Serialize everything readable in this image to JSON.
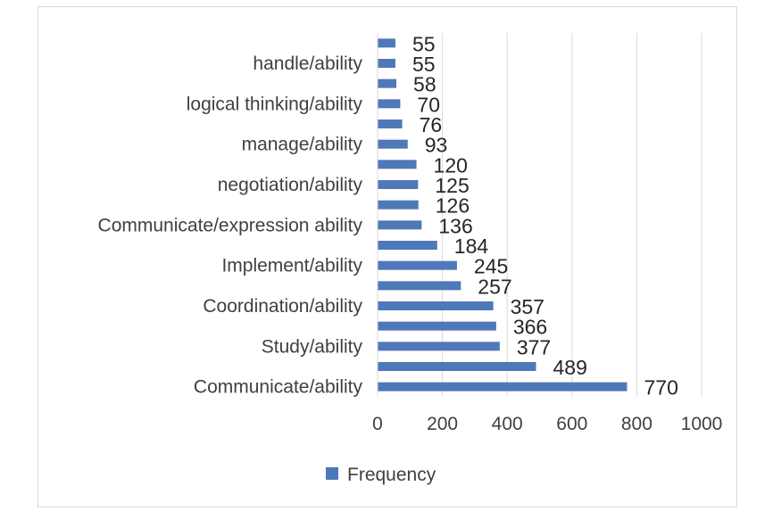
{
  "chart_data": {
    "type": "bar",
    "orientation": "horizontal",
    "categories": [
      "Communicate/ability",
      "",
      "Study/ability",
      "",
      "Coordination/ability",
      "",
      "Implement/ability",
      "",
      "Communicate/expression ability",
      "",
      "negotiation/ability",
      "",
      "manage/ability",
      "",
      "logical thinking/ability",
      "",
      "handle/ability",
      ""
    ],
    "series": [
      {
        "name": "Frequency",
        "values": [
          770,
          489,
          377,
          366,
          357,
          257,
          245,
          184,
          136,
          126,
          125,
          120,
          93,
          76,
          70,
          58,
          55,
          55
        ]
      }
    ],
    "data_labels": [
      "770",
      "489",
      "377",
      "366",
      "357",
      "257",
      "245",
      "184",
      "136",
      "126",
      "125",
      "120",
      "93",
      "76",
      "70",
      "58",
      "55",
      "55"
    ],
    "xlim": [
      0,
      1000
    ],
    "xticks": [
      0,
      200,
      400,
      600,
      800,
      1000
    ],
    "grid": "vertical",
    "legend": "bottom",
    "bar_color": "#4f78b8"
  }
}
